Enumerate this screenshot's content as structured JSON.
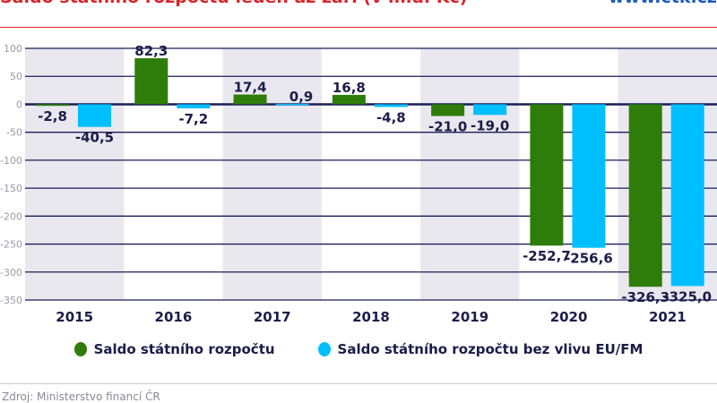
{
  "header": {
    "title": "Saldo státního rozpočtu leden až září (v mld. Kč)",
    "brand": "www.ctk.cz"
  },
  "chart_data": {
    "type": "bar",
    "categories": [
      "2015",
      "2016",
      "2017",
      "2018",
      "2019",
      "2020",
      "2021"
    ],
    "series": [
      {
        "name": "Saldo státního rozpočtu",
        "color": "#2e7d0a",
        "values": [
          -2.8,
          82.3,
          17.4,
          16.8,
          -21.0,
          -252.7,
          -326.3
        ],
        "labels": [
          "-2,8",
          "82,3",
          "17,4",
          "16,8",
          "-21,0",
          "-252,7",
          "-326,3"
        ]
      },
      {
        "name": "Saldo státního rozpočtu bez vlivu EU/FM",
        "color": "#00bfff",
        "values": [
          -40.5,
          -7.2,
          0.9,
          -4.8,
          -19.0,
          -256.6,
          -325.0
        ],
        "labels": [
          "-40,5",
          "-7,2",
          "0,9",
          "-4,8",
          "-19,0",
          "-256,6",
          "-325,0"
        ]
      }
    ],
    "yticks": [
      "100",
      "50",
      "0",
      "-50",
      "-100",
      "-150",
      "-200",
      "-250",
      "-300",
      "-350"
    ],
    "ylim": [
      -350,
      100
    ],
    "grid": true,
    "legend": "bottom"
  },
  "footer": {
    "source": "Zdroj: Ministerstvo financí ČR"
  }
}
